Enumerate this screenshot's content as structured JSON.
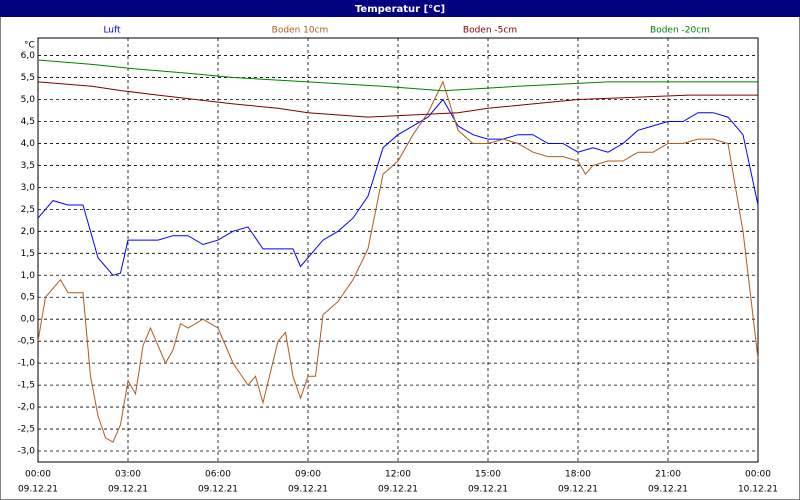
{
  "chart_data": {
    "type": "line",
    "title": "Temperatur [°C]",
    "y_unit": "°C",
    "xlim": [
      0,
      24
    ],
    "ylim": [
      -3.25,
      6.4
    ],
    "grid": true,
    "xticks": [
      {
        "value": 0,
        "label": "00:00",
        "date": "09.12.21"
      },
      {
        "value": 3,
        "label": "03:00",
        "date": "09.12.21"
      },
      {
        "value": 6,
        "label": "06:00",
        "date": "09.12.21"
      },
      {
        "value": 9,
        "label": "09:00",
        "date": "09.12.21"
      },
      {
        "value": 12,
        "label": "12:00",
        "date": "09.12.21"
      },
      {
        "value": 15,
        "label": "15:00",
        "date": "09.12.21"
      },
      {
        "value": 18,
        "label": "18:00",
        "date": "09.12.21"
      },
      {
        "value": 21,
        "label": "21:00",
        "date": "09.12.21"
      },
      {
        "value": 24,
        "label": "00:00",
        "date": "10.12.21"
      }
    ],
    "yticks": [
      {
        "value": -3,
        "label": "-3,0"
      },
      {
        "value": -2.5,
        "label": "-2,5"
      },
      {
        "value": -2,
        "label": "-2,0"
      },
      {
        "value": -1.5,
        "label": "-1,5"
      },
      {
        "value": -1,
        "label": "-1,0"
      },
      {
        "value": -0.5,
        "label": "-0,5"
      },
      {
        "value": 0,
        "label": "0,0"
      },
      {
        "value": 0.5,
        "label": "0,5"
      },
      {
        "value": 1,
        "label": "1,0"
      },
      {
        "value": 1.5,
        "label": "1,5"
      },
      {
        "value": 2,
        "label": "2,0"
      },
      {
        "value": 2.5,
        "label": "2,5"
      },
      {
        "value": 3,
        "label": "3,0"
      },
      {
        "value": 3.5,
        "label": "3,5"
      },
      {
        "value": 4,
        "label": "4,0"
      },
      {
        "value": 4.5,
        "label": "4,5"
      },
      {
        "value": 5,
        "label": "5,0"
      },
      {
        "value": 5.5,
        "label": "5,5"
      },
      {
        "value": 6,
        "label": "6,0"
      }
    ],
    "series": [
      {
        "name": "Luft",
        "color": "#0000ff",
        "x": [
          0,
          0.5,
          1,
          1.5,
          2,
          2.5,
          2.75,
          3,
          3.5,
          4,
          4.5,
          5,
          5.5,
          6,
          6.5,
          7,
          7.5,
          8,
          8.5,
          8.75,
          9,
          9.5,
          10,
          10.5,
          11,
          11.5,
          12,
          12.5,
          13,
          13.5,
          14,
          14.5,
          15,
          15.5,
          16,
          16.5,
          17,
          17.5,
          18,
          18.5,
          19,
          19.5,
          20,
          20.5,
          21,
          21.5,
          22,
          22.5,
          23,
          23.5,
          24
        ],
        "values": [
          2.3,
          2.7,
          2.6,
          2.6,
          1.4,
          1.0,
          1.05,
          1.8,
          1.8,
          1.8,
          1.9,
          1.9,
          1.7,
          1.8,
          2.0,
          2.1,
          1.6,
          1.6,
          1.6,
          1.2,
          1.4,
          1.8,
          2.0,
          2.3,
          2.8,
          3.9,
          4.2,
          4.4,
          4.6,
          5.0,
          4.4,
          4.2,
          4.1,
          4.1,
          4.2,
          4.2,
          4.0,
          4.0,
          3.8,
          3.9,
          3.8,
          4.0,
          4.3,
          4.4,
          4.5,
          4.5,
          4.7,
          4.7,
          4.6,
          4.2,
          2.6
        ]
      },
      {
        "name": "Boden 10cm",
        "color": "#b05a1e",
        "x": [
          0,
          0.25,
          0.5,
          0.75,
          1,
          1.5,
          1.75,
          2,
          2.25,
          2.5,
          2.75,
          3,
          3.25,
          3.5,
          3.75,
          4,
          4.25,
          4.5,
          4.75,
          5,
          5.5,
          6,
          6.5,
          7,
          7.25,
          7.5,
          8,
          8.25,
          8.5,
          8.75,
          9,
          9.25,
          9.5,
          10,
          10.5,
          11,
          11.5,
          12,
          12.5,
          13,
          13.5,
          14,
          14.5,
          15,
          15.5,
          16,
          16.5,
          17,
          17.5,
          18,
          18.25,
          18.5,
          19,
          19.5,
          20,
          20.5,
          21,
          21.5,
          22,
          22.5,
          23,
          23.5,
          24
        ],
        "values": [
          -0.5,
          0.5,
          0.7,
          0.9,
          0.6,
          0.6,
          -1.3,
          -2.2,
          -2.7,
          -2.8,
          -2.4,
          -1.4,
          -1.7,
          -0.6,
          -0.2,
          -0.6,
          -1.0,
          -0.7,
          -0.1,
          -0.2,
          0.0,
          -0.2,
          -1.0,
          -1.5,
          -1.3,
          -1.9,
          -0.5,
          -0.3,
          -1.3,
          -1.8,
          -1.3,
          -1.3,
          0.1,
          0.4,
          0.9,
          1.6,
          3.3,
          3.6,
          4.2,
          4.7,
          5.4,
          4.3,
          4.0,
          4.0,
          4.1,
          4.0,
          3.8,
          3.7,
          3.7,
          3.6,
          3.3,
          3.5,
          3.6,
          3.6,
          3.8,
          3.8,
          4.0,
          4.0,
          4.1,
          4.1,
          4.0,
          2.0,
          -0.9
        ]
      },
      {
        "name": "Boden -5cm",
        "color": "#800000",
        "x": [
          0,
          1.8,
          2.8,
          4,
          6.5,
          8,
          9,
          11,
          14,
          15,
          16.5,
          18,
          21.7,
          24
        ],
        "values": [
          5.4,
          5.3,
          5.2,
          5.1,
          4.9,
          4.8,
          4.7,
          4.6,
          4.7,
          4.8,
          4.9,
          5.0,
          5.1,
          5.1
        ]
      },
      {
        "name": "Boden -20cm",
        "color": "#008000",
        "x": [
          0,
          1.8,
          3.2,
          5,
          6.5,
          9,
          11.5,
          13.5,
          16,
          19,
          24
        ],
        "values": [
          5.9,
          5.8,
          5.7,
          5.6,
          5.5,
          5.4,
          5.3,
          5.2,
          5.3,
          5.4,
          5.4
        ]
      }
    ]
  }
}
